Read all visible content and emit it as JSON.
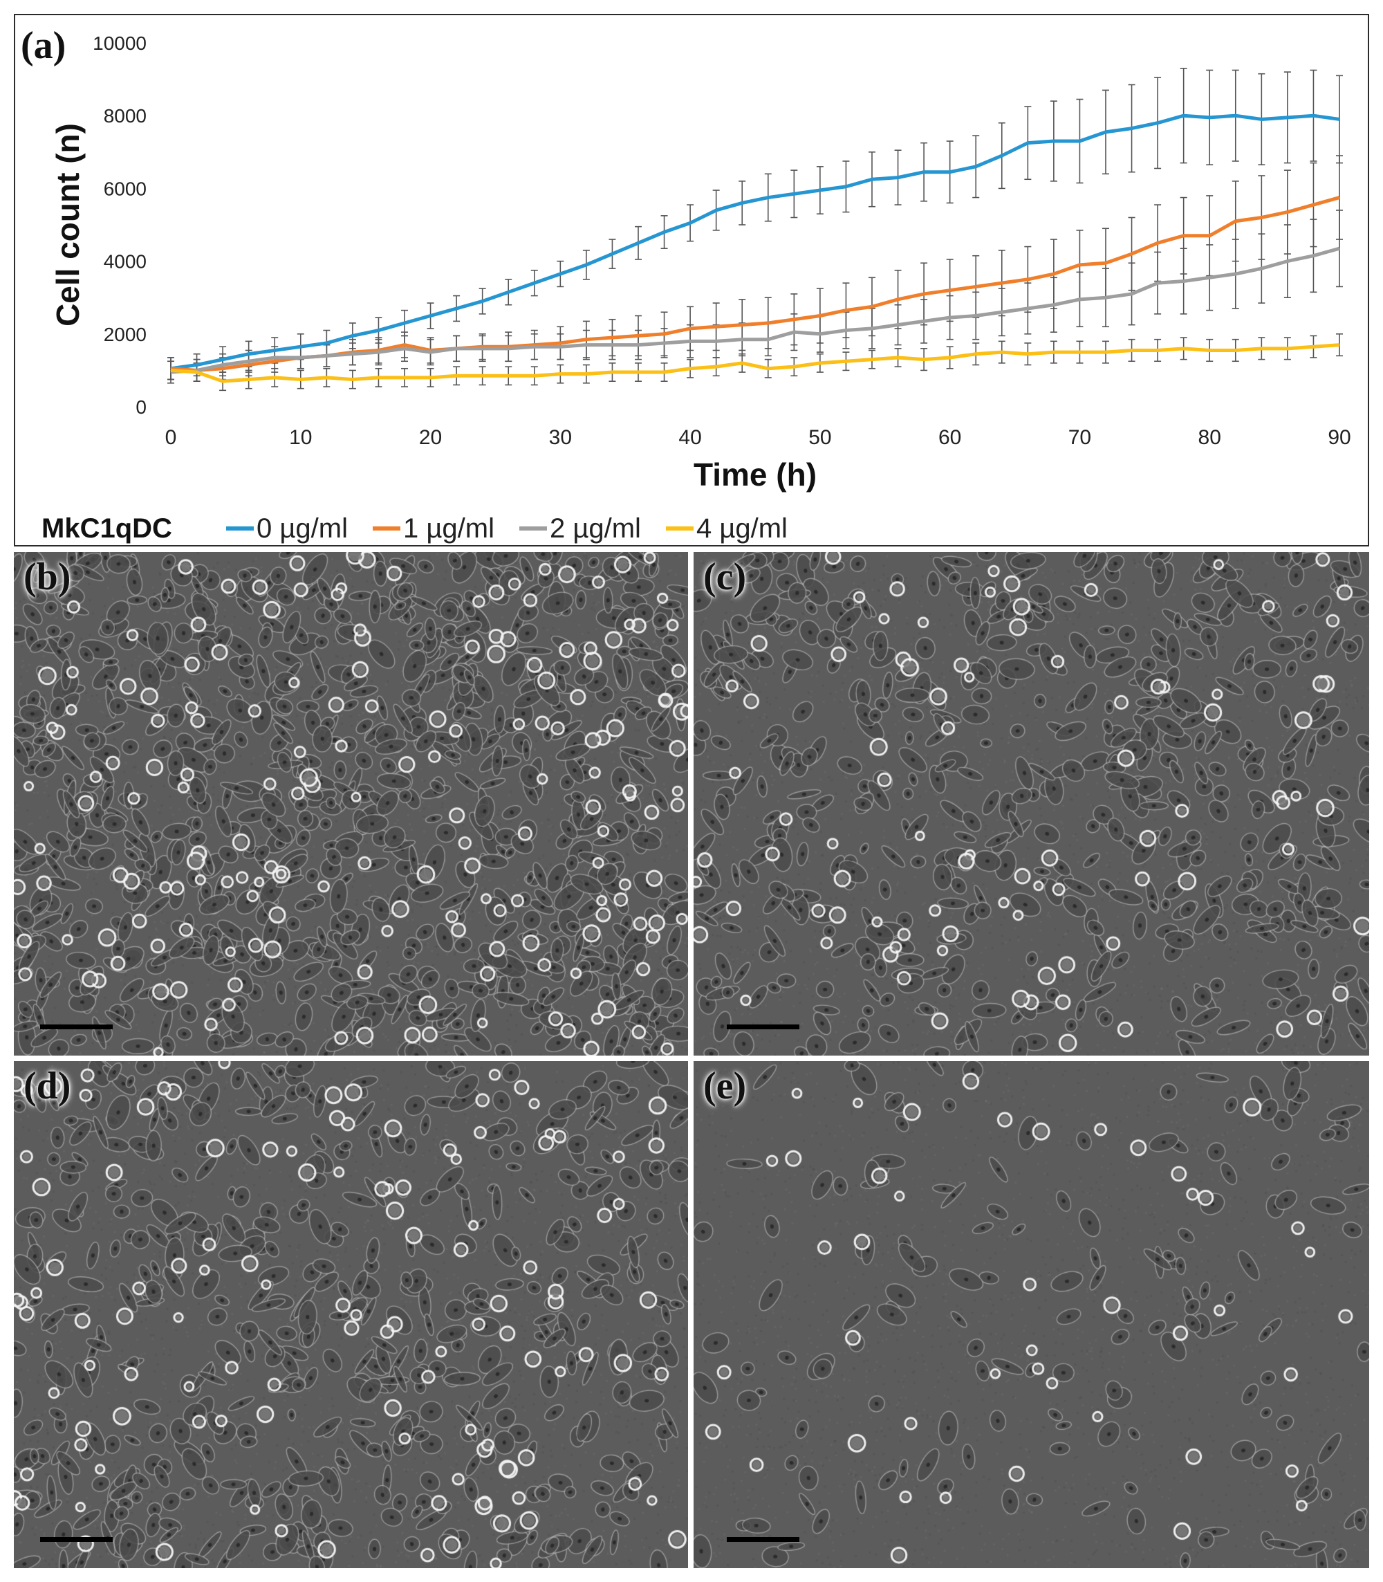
{
  "chart_data": {
    "type": "line",
    "panel_label": "(a)",
    "xlabel": "Time (h)",
    "ylabel": "Cell count (n)",
    "xlim": [
      0,
      90
    ],
    "ylim": [
      0,
      10000
    ],
    "xticks": [
      0,
      10,
      20,
      30,
      40,
      50,
      60,
      70,
      80,
      90
    ],
    "yticks": [
      0,
      2000,
      4000,
      6000,
      8000,
      10000
    ],
    "grid": false,
    "legend_position": "bottom",
    "legend_title": "MkC1qDC",
    "x": [
      0,
      2,
      4,
      6,
      8,
      10,
      12,
      14,
      16,
      18,
      20,
      22,
      24,
      26,
      28,
      30,
      32,
      34,
      36,
      38,
      40,
      42,
      44,
      46,
      48,
      50,
      52,
      54,
      56,
      58,
      60,
      62,
      64,
      66,
      68,
      70,
      72,
      74,
      76,
      78,
      80,
      82,
      84,
      86,
      88,
      90
    ],
    "series": [
      {
        "name": "0 µg/ml",
        "color": "#2596d1",
        "values": [
          1050,
          1150,
          1300,
          1450,
          1550,
          1650,
          1750,
          1950,
          2100,
          2300,
          2500,
          2700,
          2900,
          3150,
          3400,
          3650,
          3900,
          4200,
          4500,
          4800,
          5050,
          5400,
          5600,
          5750,
          5850,
          5950,
          6050,
          6250,
          6300,
          6450,
          6450,
          6600,
          6900,
          7250,
          7300,
          7300,
          7550,
          7650,
          7800,
          8000,
          7950,
          8000,
          7900,
          7950,
          8000,
          7900
        ],
        "errors": [
          300,
          300,
          350,
          350,
          350,
          350,
          350,
          350,
          350,
          350,
          350,
          350,
          350,
          350,
          350,
          350,
          400,
          400,
          450,
          450,
          500,
          550,
          600,
          650,
          650,
          650,
          700,
          750,
          750,
          800,
          850,
          850,
          900,
          1000,
          1100,
          1150,
          1150,
          1200,
          1250,
          1300,
          1300,
          1250,
          1250,
          1250,
          1250,
          1200
        ]
      },
      {
        "name": "1 µg/ml",
        "color": "#f07f2c",
        "values": [
          1050,
          1000,
          1050,
          1150,
          1250,
          1350,
          1400,
          1500,
          1550,
          1700,
          1550,
          1600,
          1650,
          1650,
          1700,
          1750,
          1850,
          1900,
          1950,
          2000,
          2150,
          2200,
          2250,
          2300,
          2400,
          2500,
          2650,
          2750,
          2950,
          3100,
          3200,
          3300,
          3400,
          3500,
          3650,
          3900,
          3950,
          4200,
          4500,
          4700,
          4700,
          5100,
          5200,
          5350,
          5550,
          5750
        ],
        "errors": [
          300,
          300,
          300,
          300,
          300,
          300,
          300,
          350,
          350,
          350,
          350,
          350,
          350,
          400,
          400,
          450,
          500,
          500,
          550,
          600,
          600,
          650,
          700,
          700,
          700,
          750,
          750,
          800,
          800,
          850,
          850,
          850,
          900,
          900,
          950,
          950,
          950,
          1000,
          1050,
          1050,
          1100,
          1100,
          1150,
          1150,
          1150,
          1150
        ]
      },
      {
        "name": "2 µg/ml",
        "color": "#9e9e9e",
        "values": [
          950,
          1000,
          1150,
          1250,
          1350,
          1350,
          1400,
          1450,
          1500,
          1600,
          1500,
          1600,
          1600,
          1600,
          1650,
          1650,
          1700,
          1700,
          1700,
          1750,
          1800,
          1800,
          1850,
          1850,
          2050,
          2000,
          2100,
          2150,
          2250,
          2350,
          2450,
          2500,
          2600,
          2700,
          2800,
          2950,
          3000,
          3100,
          3400,
          3450,
          3550,
          3650,
          3800,
          4000,
          4150,
          4350
        ],
        "errors": [
          300,
          300,
          300,
          300,
          300,
          300,
          300,
          300,
          350,
          350,
          350,
          350,
          350,
          350,
          350,
          350,
          400,
          400,
          400,
          400,
          450,
          450,
          450,
          450,
          500,
          500,
          500,
          550,
          550,
          600,
          600,
          650,
          650,
          700,
          750,
          750,
          800,
          850,
          850,
          900,
          900,
          950,
          950,
          1000,
          1000,
          1050
        ]
      },
      {
        "name": "4 µg/ml",
        "color": "#fbbf15",
        "values": [
          1000,
          950,
          700,
          750,
          800,
          750,
          800,
          750,
          800,
          800,
          800,
          850,
          850,
          850,
          850,
          900,
          900,
          950,
          950,
          950,
          1050,
          1100,
          1200,
          1050,
          1100,
          1200,
          1250,
          1300,
          1350,
          1300,
          1350,
          1450,
          1500,
          1450,
          1500,
          1500,
          1500,
          1550,
          1550,
          1600,
          1550,
          1550,
          1600,
          1600,
          1650,
          1700
        ],
        "errors": [
          250,
          250,
          250,
          250,
          250,
          250,
          250,
          250,
          250,
          250,
          250,
          250,
          250,
          250,
          250,
          250,
          250,
          250,
          250,
          250,
          250,
          250,
          250,
          250,
          250,
          250,
          250,
          250,
          250,
          300,
          300,
          300,
          300,
          300,
          300,
          300,
          300,
          300,
          300,
          300,
          300,
          300,
          300,
          300,
          300,
          300
        ]
      }
    ]
  },
  "micrographs": [
    {
      "label": "(b)",
      "tone": "#5f5f5f",
      "density": "dense"
    },
    {
      "label": "(c)",
      "tone": "#5e5e5e",
      "density": "medium"
    },
    {
      "label": "(d)",
      "tone": "#5c5c5c",
      "density": "medium"
    },
    {
      "label": "(e)",
      "tone": "#5b5b5b",
      "density": "sparse"
    }
  ]
}
